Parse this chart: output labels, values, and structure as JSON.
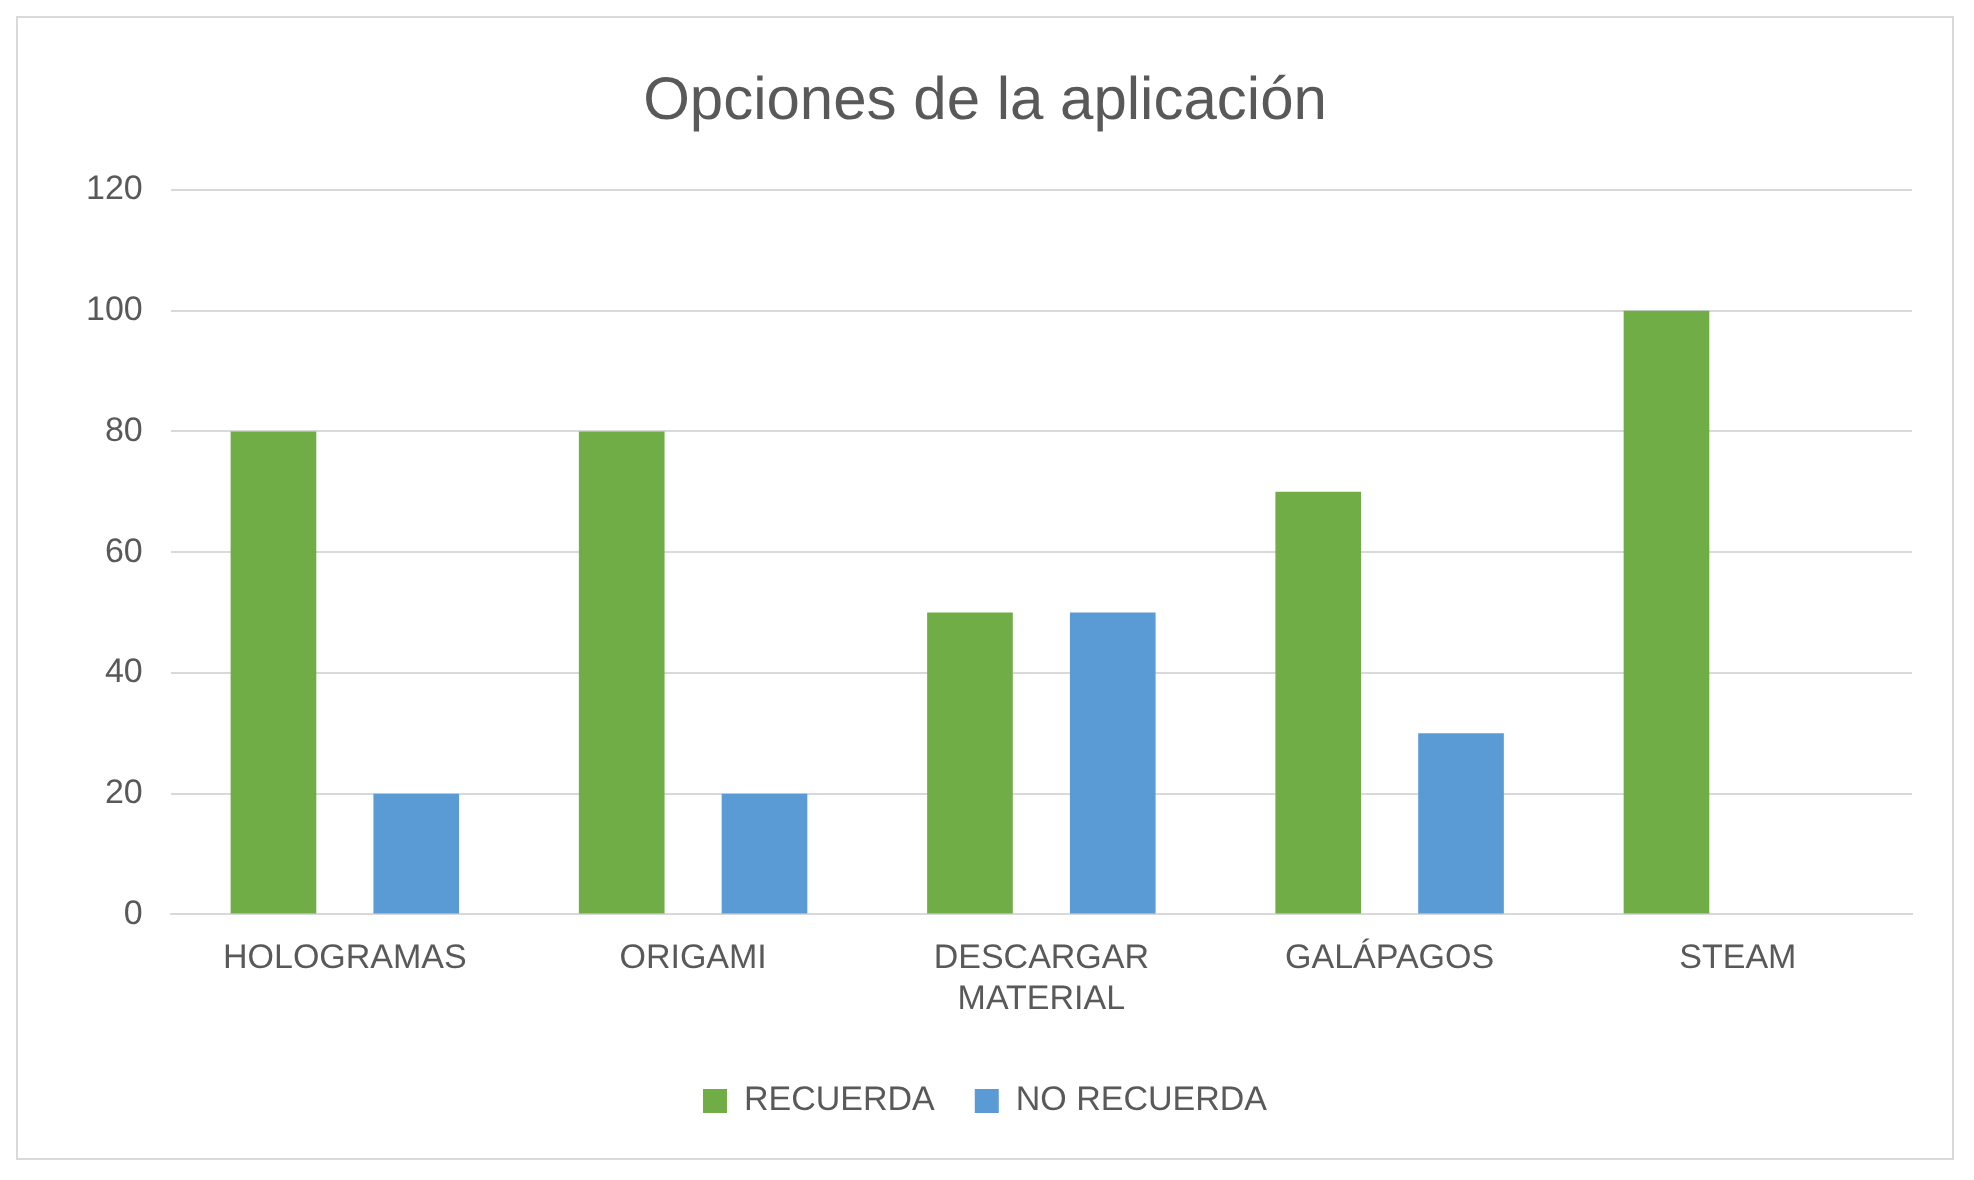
{
  "chart_data": {
    "type": "bar",
    "title": "Opciones de la aplicación",
    "categories": [
      "HOLOGRAMAS",
      "ORIGAMI",
      "DESCARGAR MATERIAL",
      "GALÁPAGOS",
      "STEAM"
    ],
    "series": [
      {
        "name": "RECUERDA",
        "color": "#70ad47",
        "values": [
          80,
          80,
          50,
          70,
          100
        ]
      },
      {
        "name": "NO RECUERDA",
        "color": "#5b9bd5",
        "values": [
          20,
          20,
          50,
          30,
          0
        ]
      }
    ],
    "ylim": [
      0,
      120
    ],
    "yticks": [
      0,
      20,
      40,
      60,
      80,
      100,
      120
    ],
    "grid": "y",
    "legend": "bottom"
  }
}
